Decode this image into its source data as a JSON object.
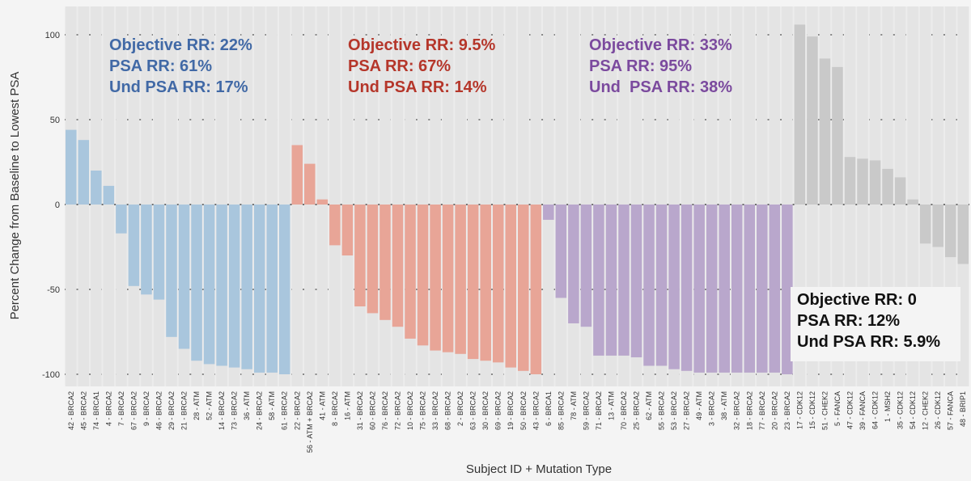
{
  "chart_data": {
    "type": "bar",
    "xlabel": "Subject ID + Mutation Type",
    "ylabel": "Percent Change from Baseline to Lowest PSA",
    "ylim": [
      -105,
      112
    ],
    "yticks": [
      -100,
      -50,
      0,
      50,
      100
    ],
    "grid": "dashed horizontal",
    "series": [
      {
        "color": "#a9c6dd",
        "categories": [
          "42 - BRCA2",
          "45 - BRCA2",
          "74 - BRCA1",
          "4 - BRCA2",
          "7 - BRCA2",
          "67 - BRCA2",
          "9 - BRCA2",
          "46 - BRCA2",
          "29 - BRCA2",
          "21 - BRCA2",
          "28 - ATM",
          "52 - ATM",
          "14 - BRCA2",
          "73 - BRCA2",
          "36 - ATM",
          "24 - BRCA2",
          "58 - ATM",
          "61 - BRCA2"
        ],
        "values": [
          44,
          38,
          20,
          11,
          -17,
          -48,
          -53,
          -56,
          -78,
          -85,
          -92,
          -94,
          -95,
          -96,
          -97,
          -99,
          -99,
          -100
        ]
      },
      {
        "color": "#e8a597",
        "categories": [
          "22 - BRCA2",
          "56 - ATM + BRCA2",
          "41 - ATM",
          "8 - BRCA2",
          "16 - ATM",
          "31 - BRCA2",
          "60 - BRCA2",
          "76 - BRCA2",
          "72 - BRCA2",
          "10 - BRCA2",
          "75 - BRCA2",
          "33 - BRCA2",
          "68 - BRCA2",
          "2 - BRCA2",
          "63 - BRCA2",
          "30 - BRCA2",
          "69 - BRCA2",
          "19 - BRCA2",
          "50 - BRCA2",
          "43 - BRCA2"
        ],
        "values": [
          35,
          24,
          3,
          -24,
          -30,
          -60,
          -64,
          -68,
          -72,
          -79,
          -83,
          -86,
          -87,
          -88,
          -91,
          -92,
          -93,
          -96,
          -98,
          -100
        ]
      },
      {
        "color": "#b9a7cc",
        "categories": [
          "6 - BRCA1",
          "85 - BRCA2",
          "78 - ATM",
          "59 - BRCA2",
          "71 - BRCA2",
          "13 - ATM",
          "70 - BRCA2",
          "25 - BRCA2",
          "62 - ATM",
          "55 - BRCA2",
          "53 - BRCA2",
          "27 - BRCA2",
          "49 - ATM",
          "3 - BRCA2",
          "38 - ATM",
          "32 - BRCA2",
          "18 - BRCA2",
          "77 - BRCA2",
          "20 - BRCA2",
          "23 - BRCA2"
        ],
        "values": [
          -9,
          -55,
          -70,
          -72,
          -89,
          -89,
          -89,
          -90,
          -95,
          -95,
          -97,
          -98,
          -99,
          -99,
          -99,
          -99,
          -99,
          -99,
          -99,
          -100
        ]
      },
      {
        "color": "#c9c9c9",
        "categories": [
          "17 - CDK12",
          "15 - CDK12",
          "51 - CHEK2",
          "5 - FANCA",
          "47 - CDK12",
          "39 - FANCA",
          "64 - CDK12",
          "1 - MSH2",
          "35 - CDK12",
          "54 - CDK12",
          "12 - CHEK2",
          "26 - CDK12",
          "57 - FANCA",
          "48 - BRIP1"
        ],
        "values": [
          106,
          99,
          86,
          81,
          28,
          27,
          26,
          21,
          16,
          3,
          -23,
          -25,
          -31,
          -35
        ]
      }
    ],
    "annotations": [
      {
        "color": "#4169a6",
        "lines": [
          "Objective RR: 22%",
          "PSA RR: 61%",
          "Und PSA RR: 17%"
        ]
      },
      {
        "color": "#b5362a",
        "lines": [
          "Objective RR: 9.5%",
          "PSA RR: 67%",
          "Und PSA RR: 14%"
        ]
      },
      {
        "color": "#7b4a9e",
        "lines": [
          "Objective RR: 33%",
          "PSA RR: 95%",
          "Und  PSA RR: 38%"
        ]
      },
      {
        "color": "#111111",
        "lines": [
          "Objective RR: 0",
          "PSA RR: 12%",
          "Und PSA RR: 5.9%"
        ]
      }
    ]
  }
}
